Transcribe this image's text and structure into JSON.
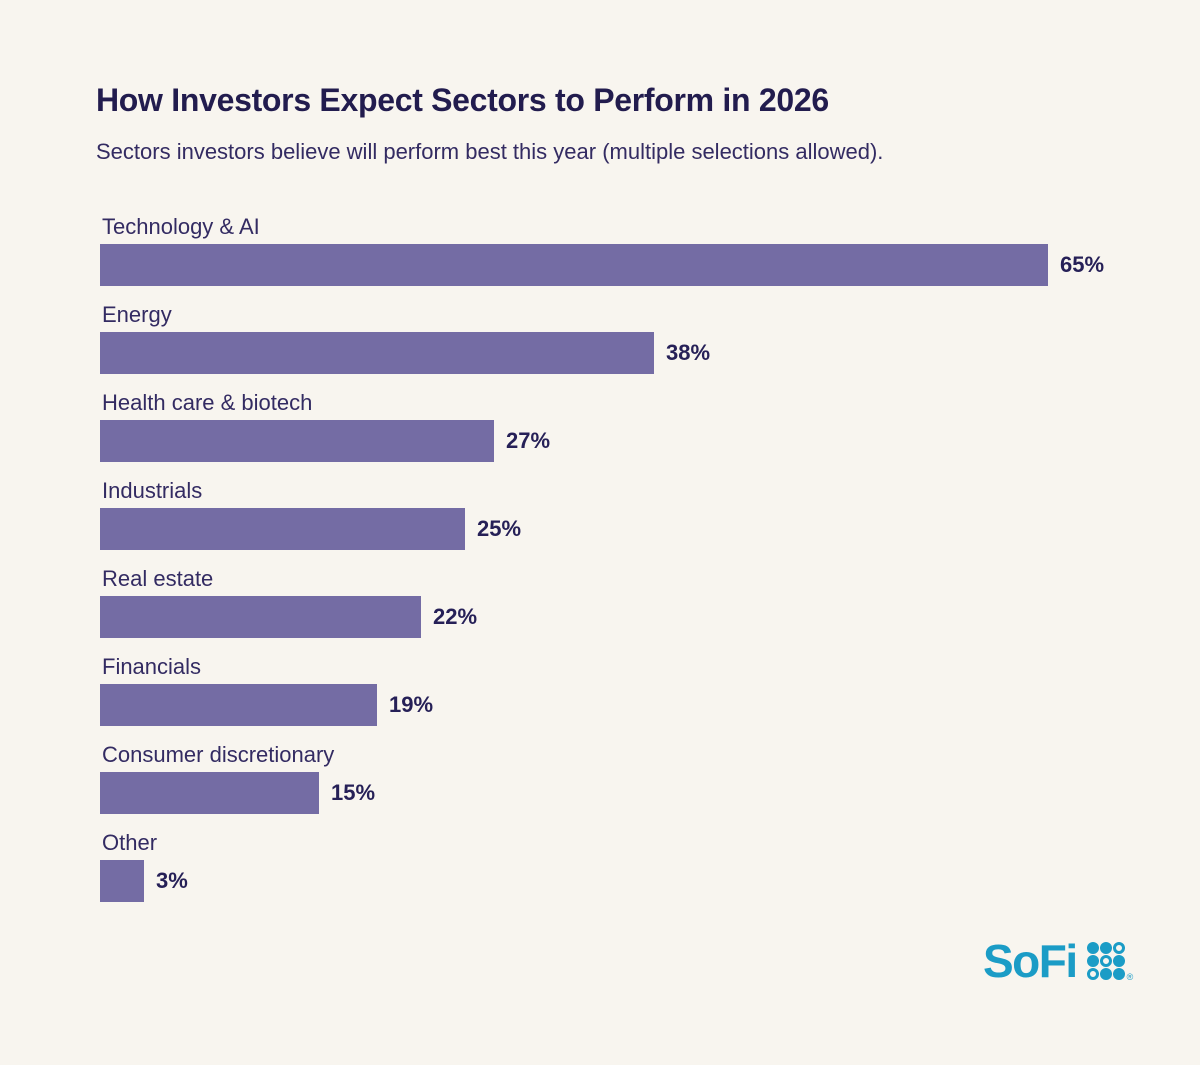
{
  "header": {
    "title": "How Investors Expect Sectors to Perform in 2026",
    "subtitle": "Sectors investors believe will perform best this year (multiple selections allowed)."
  },
  "chart_data": {
    "type": "bar",
    "orientation": "horizontal",
    "title": "How Investors Expect Sectors to Perform in 2026",
    "subtitle": "Sectors investors believe will perform best this year (multiple selections allowed).",
    "categories": [
      "Technology & AI",
      "Energy",
      "Health care & biotech",
      "Industrials",
      "Real estate",
      "Financials",
      "Consumer discretionary",
      "Other"
    ],
    "values": [
      65,
      38,
      27,
      25,
      22,
      19,
      15,
      3
    ],
    "value_suffix": "%",
    "xlim": [
      0,
      65
    ],
    "grid": false,
    "legend": false,
    "value_labels": "end-of-bar"
  },
  "colors": {
    "background": "#F8F5EF",
    "bar": "#746CA4",
    "title": "#221C4E",
    "category_label": "#332B62",
    "value_label": "#262057",
    "brand_teal": "#1B9CC6"
  },
  "footer": {
    "brand": "SoFi",
    "registered_mark": "®",
    "dot_grid_icon": "sofi-3x3-dot-grid",
    "dot_grid_pattern": [
      [
        1,
        1,
        0
      ],
      [
        1,
        0,
        1
      ],
      [
        0,
        1,
        1
      ]
    ]
  }
}
